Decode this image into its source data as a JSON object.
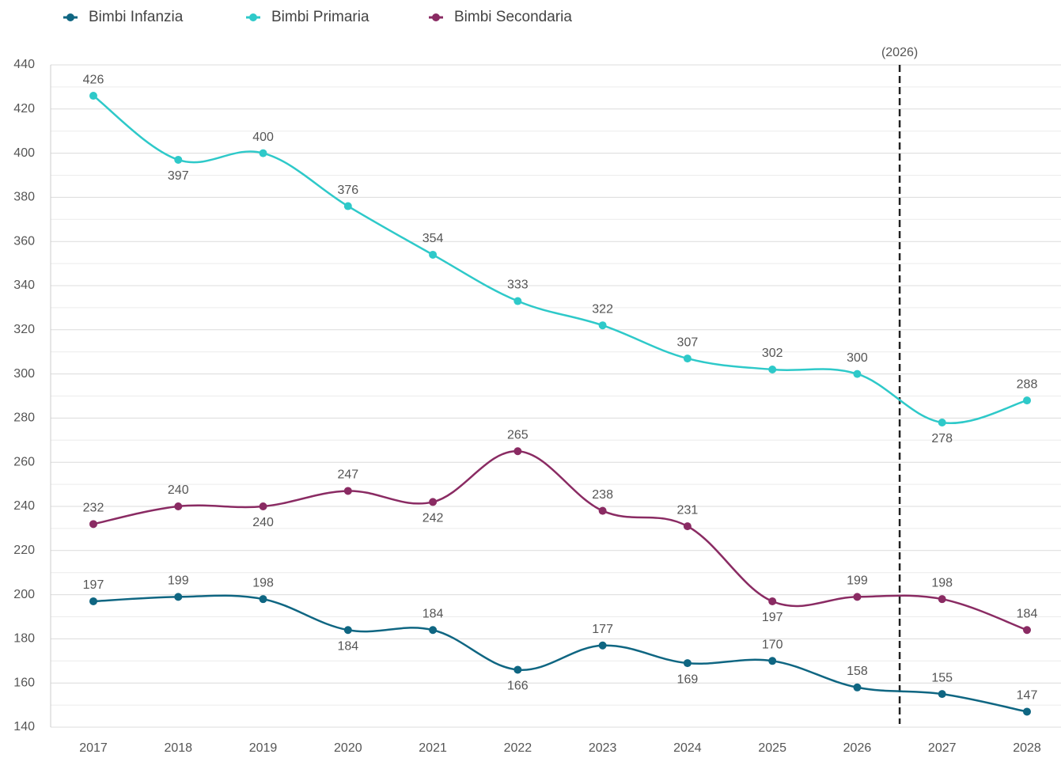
{
  "chart_data": {
    "type": "line",
    "categories": [
      "2017",
      "2018",
      "2019",
      "2020",
      "2021",
      "2022",
      "2023",
      "2024",
      "2025",
      "2026",
      "2027",
      "2028"
    ],
    "series": [
      {
        "name": "Bimbi Infanzia",
        "color": "#0f6682",
        "values": [
          197,
          199,
          198,
          184,
          184,
          166,
          177,
          169,
          170,
          158,
          155,
          147
        ]
      },
      {
        "name": "Bimbi Primaria",
        "color": "#2ec9c9",
        "values": [
          426,
          397,
          400,
          376,
          354,
          333,
          322,
          307,
          302,
          300,
          278,
          288
        ]
      },
      {
        "name": "Bimbi Secondaria",
        "color": "#8a2b63",
        "values": [
          232,
          240,
          240,
          247,
          242,
          265,
          238,
          231,
          197,
          199,
          198,
          184
        ]
      }
    ],
    "ylim": [
      140,
      440
    ],
    "yticks": [
      140,
      160,
      180,
      200,
      220,
      240,
      260,
      280,
      300,
      320,
      340,
      360,
      380,
      400,
      420,
      440
    ],
    "grid": true,
    "legend": "top",
    "annotations": [
      {
        "label": "(2026)"
      }
    ]
  }
}
